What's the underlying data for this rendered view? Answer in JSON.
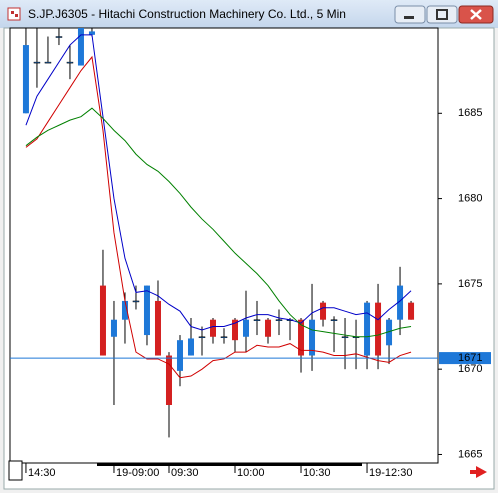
{
  "chart_data": {
    "type": "candlestick",
    "title": "S.JP.J6305 - Hitachi Construction Machinery Co. Ltd., 5 Min",
    "open": [
      1685,
      1688,
      1688,
      1689.5,
      1688,
      1687.8,
      1689.6,
      1674.9,
      1671.9,
      1672.9,
      1674,
      1672,
      1674,
      1670.8,
      1669.9,
      1670.8,
      1671.9,
      1672.9,
      1671.9,
      1672.9,
      1671.9,
      1672.9,
      1672.9,
      1672.9,
      1672.9,
      1672.9,
      1670.8,
      1673.9,
      1672.9,
      1671.9,
      1671.9,
      1670.8,
      1673.9,
      1671.4,
      1672.9,
      1673.9
    ],
    "high": [
      1690,
      1690,
      1689.5,
      1690,
      1689,
      1690,
      1690,
      1677,
      1674,
      1674.5,
      1674.9,
      1674.9,
      1675.2,
      1671,
      1672,
      1673,
      1672.5,
      1673,
      1672.4,
      1673,
      1674.6,
      1674,
      1673,
      1673.5,
      1673,
      1673,
      1675,
      1674,
      1673.1,
      1673,
      1672.9,
      1674,
      1675,
      1673,
      1676,
      1674
    ],
    "low": [
      1685,
      1686.5,
      1688,
      1689,
      1687,
      1687.8,
      1689.5,
      1670.8,
      1667.9,
      1671.5,
      1673.5,
      1671.4,
      1670.8,
      1666,
      1669,
      1670.8,
      1670.8,
      1671.5,
      1671.5,
      1671,
      1671,
      1672,
      1671.5,
      1672,
      1671.7,
      1669.8,
      1669.9,
      1672.5,
      1671,
      1670,
      1670,
      1670,
      1670,
      1670.3,
      1672,
      1672.9
    ],
    "close": [
      1689,
      1688,
      1688,
      1689.5,
      1688,
      1690,
      1689.8,
      1670.8,
      1672.9,
      1674,
      1674,
      1674.9,
      1670.8,
      1667.9,
      1671.7,
      1671.8,
      1671.9,
      1671.9,
      1671.9,
      1671.7,
      1672.9,
      1672.9,
      1671.9,
      1672.9,
      1672.9,
      1670.8,
      1672.9,
      1672.9,
      1672.9,
      1671.9,
      1671.9,
      1673.9,
      1670.8,
      1672.9,
      1674.9,
      1672.9
    ],
    "up_color": "#1e78d8",
    "down_color": "#d42020",
    "series": [
      {
        "color": "#0000c8",
        "values": [
          1684.3,
          1686,
          1687,
          1688,
          1689,
          1689.6,
          1689.6,
          1684.8,
          1680,
          1676.5,
          1674.5,
          1674.6,
          1674.3,
          1673.8,
          1673.4,
          1672.5,
          1672.3,
          1672.5,
          1672.5,
          1672.7,
          1673,
          1673.2,
          1673.2,
          1673,
          1672.9,
          1672.7,
          1673.3,
          1673.6,
          1673.6,
          1673.4,
          1673.2,
          1673.3,
          1672.9,
          1673.5,
          1674,
          1674.6
        ]
      },
      {
        "color": "#d00000",
        "values": [
          1683,
          1683.5,
          1684.5,
          1685.5,
          1686.5,
          1687.5,
          1688.3,
          1684,
          1678,
          1674,
          1671,
          1670.6,
          1670.6,
          1670.3,
          1669.5,
          1669.6,
          1670,
          1670.5,
          1670.6,
          1671,
          1671,
          1671.4,
          1671.3,
          1671.3,
          1671.5,
          1671.1,
          1671.1,
          1671,
          1670.8,
          1670.8,
          1670.9,
          1670.7,
          1670.5,
          1670.4,
          1670.8,
          1671
        ]
      },
      {
        "color": "#008000",
        "values": [
          1683.1,
          1683.6,
          1684,
          1684.3,
          1684.6,
          1684.8,
          1685.3,
          1684.7,
          1684,
          1683.4,
          1682.6,
          1682,
          1681.6,
          1681,
          1680.3,
          1679.5,
          1678.8,
          1678.2,
          1677.5,
          1676.8,
          1676.2,
          1675.6,
          1674.9,
          1674,
          1673.2,
          1672.6,
          1672.3,
          1672.2,
          1672.1,
          1672,
          1671.9,
          1671.9,
          1672,
          1672.2,
          1672.4,
          1672.5
        ]
      }
    ],
    "xlim": [
      -1.45,
      37.45
    ],
    "xticks": [
      {
        "value": 0,
        "label": "14:30"
      },
      {
        "value": 8,
        "label": "19-09:00"
      },
      {
        "value": 13,
        "label": "09:30"
      },
      {
        "value": 19,
        "label": "10:00"
      },
      {
        "value": 25,
        "label": "10:30"
      },
      {
        "value": 31,
        "label": "19-12:30"
      }
    ],
    "ylim": [
      1664.5,
      1690
    ],
    "yticks": [
      1665,
      1670,
      1675,
      1680,
      1685
    ],
    "price_line": {
      "value": 1670.65,
      "label": "1671",
      "color": "#1e78d8"
    }
  }
}
